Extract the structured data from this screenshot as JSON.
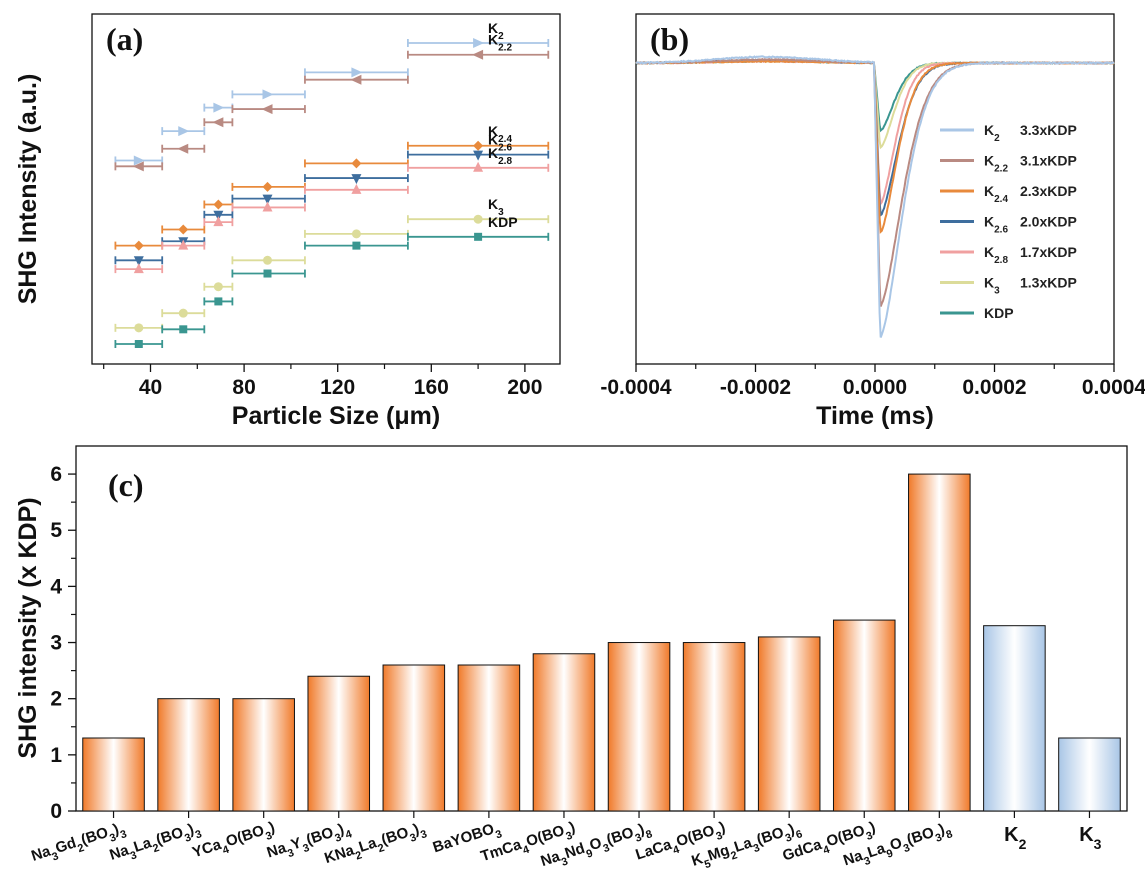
{
  "chart_data": [
    {
      "panel": "(a)",
      "type": "scatter",
      "xlabel": "Particle Size (μm)",
      "ylabel": "SHG Intensity (a.u.)",
      "xlim": [
        15,
        215
      ],
      "xticks": [
        40,
        80,
        120,
        160,
        200
      ],
      "x_centers": [
        35,
        54,
        69,
        90,
        128,
        180
      ],
      "x_ranges": [
        [
          25,
          45
        ],
        [
          45,
          63
        ],
        [
          63,
          75
        ],
        [
          75,
          106
        ],
        [
          106,
          150
        ],
        [
          150,
          210
        ]
      ],
      "series": [
        {
          "name": "K",
          "sub": "2",
          "marker": "triangle-right",
          "color": "#a9c6e6",
          "y": [
            1.4,
            1.6,
            1.76,
            1.85,
            2.0,
            2.2
          ]
        },
        {
          "name": "K",
          "sub": "2.2",
          "marker": "triangle-left",
          "color": "#b98a82",
          "y": [
            1.36,
            1.48,
            1.66,
            1.75,
            1.95,
            2.12
          ]
        },
        {
          "name": "K",
          "sub": "2.4",
          "marker": "diamond",
          "color": "#e88a3c",
          "y": [
            0.82,
            0.93,
            1.1,
            1.22,
            1.38,
            1.5
          ]
        },
        {
          "name": "K",
          "sub": "2.6",
          "marker": "triangle-down",
          "color": "#3e6e9e",
          "y": [
            0.72,
            0.85,
            1.03,
            1.14,
            1.28,
            1.44
          ]
        },
        {
          "name": "K",
          "sub": "2.8",
          "marker": "triangle-up",
          "color": "#f0a0a0",
          "y": [
            0.66,
            0.82,
            0.98,
            1.08,
            1.2,
            1.35
          ]
        },
        {
          "name": "K",
          "sub": "3",
          "marker": "circle",
          "color": "#dcdc9a",
          "y": [
            0.26,
            0.36,
            0.54,
            0.72,
            0.9,
            1.0
          ]
        },
        {
          "name": "KDP",
          "sub": "",
          "marker": "square",
          "color": "#3a9690",
          "y": [
            0.15,
            0.25,
            0.44,
            0.63,
            0.82,
            0.88
          ]
        }
      ]
    },
    {
      "panel": "(b)",
      "type": "line",
      "xlabel": "Time (ms)",
      "xlim": [
        -0.0004,
        0.0004
      ],
      "xticks": [
        -0.0004,
        -0.0002,
        0.0,
        0.0002,
        0.0004
      ],
      "xtick_labels": [
        "-0.0004",
        "-0.0002",
        "0.0000",
        "0.0002",
        "0.0004"
      ],
      "ylim": [
        0,
        1
      ],
      "series": [
        {
          "name": "K",
          "sub": "2",
          "label": "3.3xKDP",
          "color": "#a9c6e6",
          "depth": 0.97,
          "tau": 5.2e-05
        },
        {
          "name": "K",
          "sub": "2.2",
          "label": "3.1xKDP",
          "color": "#b98a82",
          "depth": 0.86,
          "tau": 5.2e-05
        },
        {
          "name": "K",
          "sub": "2.4",
          "label": "2.3xKDP",
          "color": "#e88a3c",
          "depth": 0.6,
          "tau": 4e-05
        },
        {
          "name": "K",
          "sub": "2.6",
          "label": "2.0xKDP",
          "color": "#3e6e9e",
          "depth": 0.54,
          "tau": 4.2e-05
        },
        {
          "name": "K",
          "sub": "2.8",
          "label": "1.7xKDP",
          "color": "#f0a0a0",
          "depth": 0.5,
          "tau": 3.6e-05
        },
        {
          "name": "K",
          "sub": "3",
          "label": "1.3xKDP",
          "color": "#dcdc9a",
          "depth": 0.3,
          "tau": 3.4e-05
        },
        {
          "name": "KDP",
          "sub": "",
          "label": "",
          "color": "#3a9690",
          "depth": 0.24,
          "tau": 3.4e-05
        }
      ]
    },
    {
      "panel": "(c)",
      "type": "bar",
      "ylabel": "SHG intensity (x KDP)",
      "ylim": [
        0,
        6.5
      ],
      "yticks": [
        0,
        1,
        2,
        3,
        4,
        5,
        6
      ],
      "categories": [
        {
          "parts": [
            [
              "Na",
              ""
            ],
            [
              "3",
              "sub"
            ],
            [
              "Gd",
              ""
            ],
            [
              "2",
              "sub"
            ],
            [
              "(BO",
              ""
            ],
            [
              "3",
              "sub"
            ],
            [
              ")",
              ""
            ],
            [
              "3",
              "sub"
            ]
          ]
        },
        {
          "parts": [
            [
              "Na",
              ""
            ],
            [
              "3",
              "sub"
            ],
            [
              "La",
              ""
            ],
            [
              "2",
              "sub"
            ],
            [
              "(BO",
              ""
            ],
            [
              "3",
              "sub"
            ],
            [
              ")",
              ""
            ],
            [
              "3",
              "sub"
            ]
          ]
        },
        {
          "parts": [
            [
              "YCa",
              ""
            ],
            [
              "4",
              "sub"
            ],
            [
              "O(BO",
              ""
            ],
            [
              "3",
              "sub"
            ],
            [
              ")",
              ""
            ]
          ]
        },
        {
          "parts": [
            [
              "Na",
              ""
            ],
            [
              "3",
              "sub"
            ],
            [
              "Y",
              ""
            ],
            [
              "3",
              "sub"
            ],
            [
              "(BO",
              ""
            ],
            [
              "3",
              "sub"
            ],
            [
              ")",
              ""
            ],
            [
              "4",
              "sub"
            ]
          ]
        },
        {
          "parts": [
            [
              "KNa",
              ""
            ],
            [
              "2",
              "sub"
            ],
            [
              "La",
              ""
            ],
            [
              "2",
              "sub"
            ],
            [
              "(BO",
              ""
            ],
            [
              "3",
              "sub"
            ],
            [
              ")",
              ""
            ],
            [
              "3",
              "sub"
            ]
          ]
        },
        {
          "parts": [
            [
              "BaYOBO",
              ""
            ],
            [
              "3",
              "sub"
            ]
          ]
        },
        {
          "parts": [
            [
              "TmCa",
              ""
            ],
            [
              "4",
              "sub"
            ],
            [
              "O(BO",
              ""
            ],
            [
              "3",
              "sub"
            ],
            [
              ")",
              ""
            ]
          ]
        },
        {
          "parts": [
            [
              "Na",
              ""
            ],
            [
              "3",
              "sub"
            ],
            [
              "Nd",
              ""
            ],
            [
              "9",
              "sub"
            ],
            [
              "O",
              ""
            ],
            [
              "3",
              "sub"
            ],
            [
              "(BO",
              ""
            ],
            [
              "3",
              "sub"
            ],
            [
              ")",
              ""
            ],
            [
              "8",
              "sub"
            ]
          ]
        },
        {
          "parts": [
            [
              "LaCa",
              ""
            ],
            [
              "4",
              "sub"
            ],
            [
              "O(BO",
              ""
            ],
            [
              "3",
              "sub"
            ],
            [
              ")",
              ""
            ]
          ]
        },
        {
          "parts": [
            [
              "K",
              ""
            ],
            [
              "5",
              "sub"
            ],
            [
              "Mg",
              ""
            ],
            [
              "2",
              "sub"
            ],
            [
              "La",
              ""
            ],
            [
              "3",
              "sub"
            ],
            [
              "(BO",
              ""
            ],
            [
              "3",
              "sub"
            ],
            [
              ")",
              ""
            ],
            [
              "6",
              "sub"
            ]
          ]
        },
        {
          "parts": [
            [
              "GdCa",
              ""
            ],
            [
              "4",
              "sub"
            ],
            [
              "O(BO",
              ""
            ],
            [
              "3",
              "sub"
            ],
            [
              ")",
              ""
            ]
          ]
        },
        {
          "parts": [
            [
              "Na",
              ""
            ],
            [
              "3",
              "sub"
            ],
            [
              "La",
              ""
            ],
            [
              "9",
              "sub"
            ],
            [
              "O",
              ""
            ],
            [
              "3",
              "sub"
            ],
            [
              "(BO",
              ""
            ],
            [
              "3",
              "sub"
            ],
            [
              ")",
              ""
            ],
            [
              "8",
              "sub"
            ]
          ]
        },
        {
          "parts": [
            [
              "K",
              ""
            ],
            [
              "2",
              "sub"
            ]
          ],
          "big": true
        },
        {
          "parts": [
            [
              "K",
              ""
            ],
            [
              "3",
              "sub"
            ]
          ],
          "big": true
        }
      ],
      "values": [
        1.3,
        2.0,
        2.0,
        2.4,
        2.6,
        2.6,
        2.8,
        3.0,
        3.0,
        3.1,
        3.4,
        6.0,
        3.3,
        1.3
      ],
      "bar_colors": [
        "#f07a2a",
        "#f07a2a",
        "#f07a2a",
        "#f07a2a",
        "#f07a2a",
        "#f07a2a",
        "#f07a2a",
        "#f07a2a",
        "#f07a2a",
        "#f07a2a",
        "#f07a2a",
        "#f07a2a",
        "#a9c6e6",
        "#a9c6e6"
      ]
    }
  ]
}
